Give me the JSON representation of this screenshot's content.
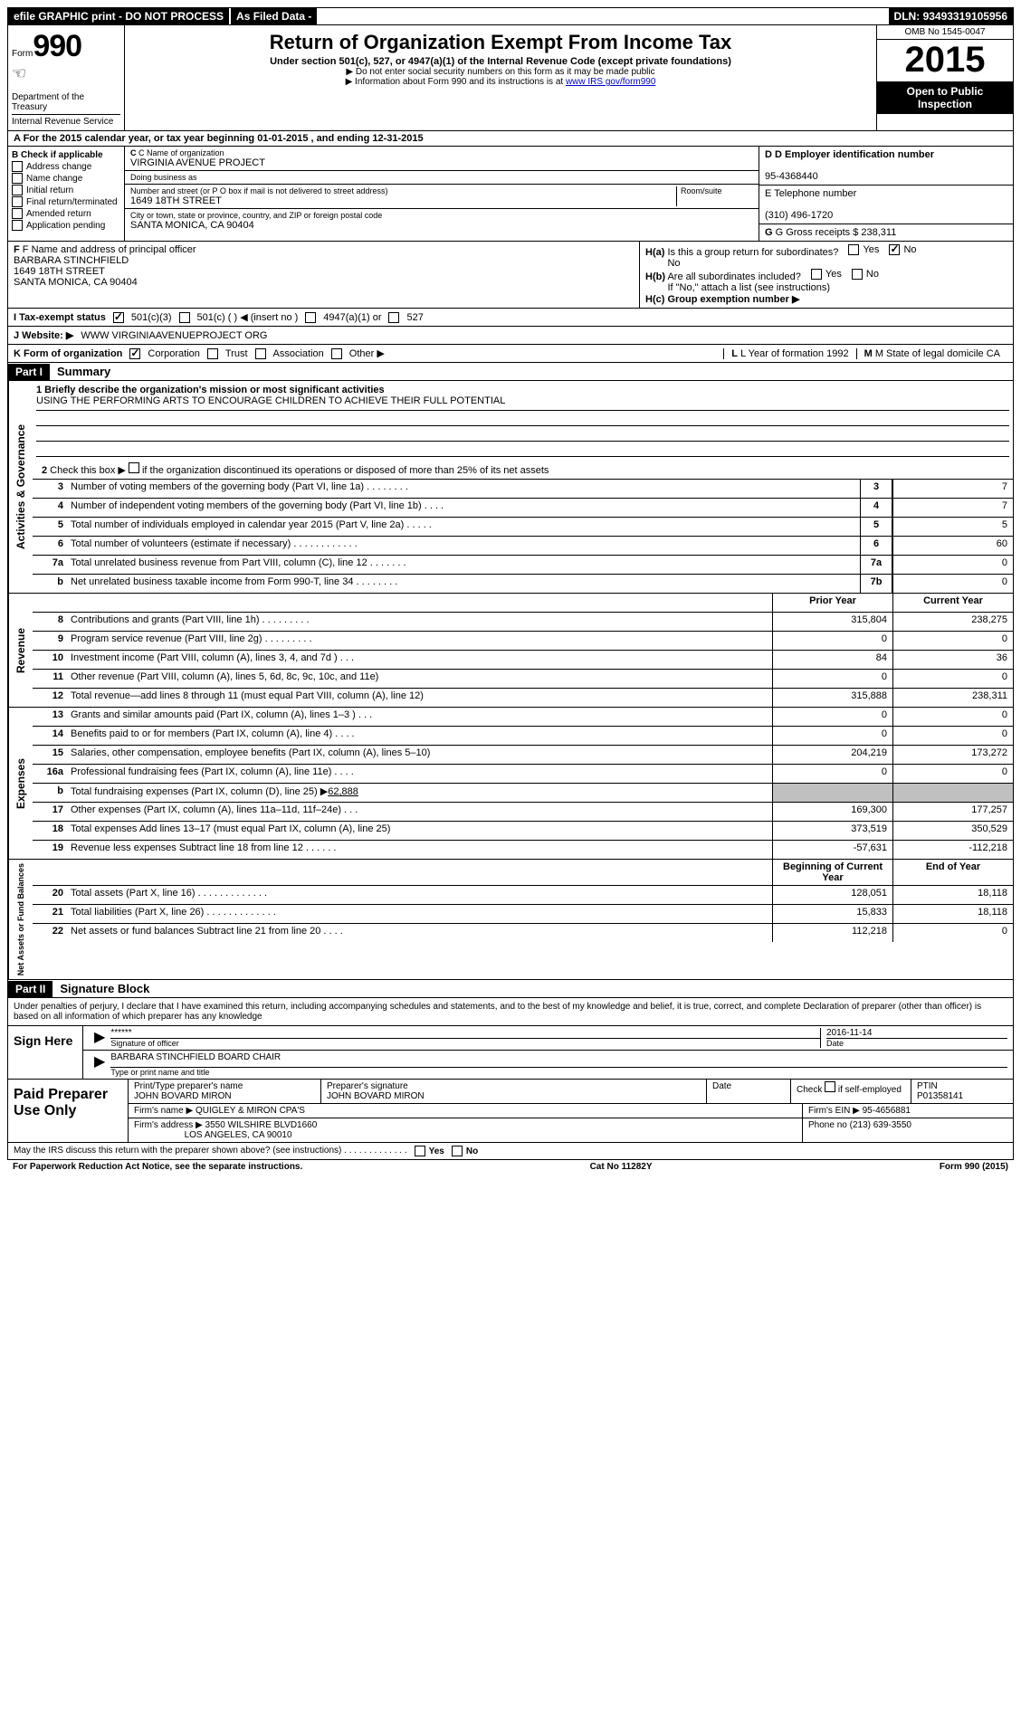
{
  "topbar": {
    "efile": "efile GRAPHIC print - DO NOT PROCESS",
    "asfiled": "As Filed Data -",
    "dln_label": "DLN:",
    "dln": "93493319105956"
  },
  "header": {
    "form_word": "Form",
    "form_num": "990",
    "dept": "Department of the Treasury",
    "irs": "Internal Revenue Service",
    "title": "Return of Organization Exempt From Income Tax",
    "subtitle": "Under section 501(c), 527, or 4947(a)(1) of the Internal Revenue Code (except private foundations)",
    "note1": "▶ Do not enter social security numbers on this form as it may be made public",
    "note2_pre": "▶ Information about Form 990 and its instructions is at ",
    "note2_link": "www IRS gov/form990",
    "omb": "OMB No 1545-0047",
    "year": "2015",
    "open": "Open to Public Inspection"
  },
  "rowA": "A  For the 2015 calendar year, or tax year beginning 01-01-2015    , and ending 12-31-2015",
  "checkB": {
    "label": "B  Check if applicable",
    "items": [
      "Address change",
      "Name change",
      "Initial return",
      "Final return/terminated",
      "Amended return",
      "Application pending"
    ]
  },
  "colC": {
    "name_label": "C Name of organization",
    "name": "VIRGINIA AVENUE PROJECT",
    "dba_label": "Doing business as",
    "dba": "",
    "street_label": "Number and street (or P O box if mail is not delivered to street address)",
    "room_label": "Room/suite",
    "street": "1649 18TH STREET",
    "city_label": "City or town, state or province, country, and ZIP or foreign postal code",
    "city": "SANTA MONICA, CA 90404"
  },
  "colD": {
    "d_label": "D Employer identification number",
    "d_val": "95-4368440",
    "e_label": "E Telephone number",
    "e_val": "(310) 496-1720",
    "g_label": "G Gross receipts $",
    "g_val": "238,311"
  },
  "rowF": {
    "f_label": "F  Name and address of principal officer",
    "f_name": "BARBARA STINCHFIELD",
    "f_street": "1649 18TH STREET",
    "f_city": "SANTA MONICA, CA 90404",
    "ha": "H(a)  Is this a group return for subordinates?",
    "ha_ans": "No",
    "hb": "H(b)  Are all subordinates included?",
    "hb_note": "If \"No,\" attach a list (see instructions)",
    "hc": "H(c)  Group exemption number ▶",
    "yes": "Yes",
    "no": "No"
  },
  "rowI": {
    "label": "I   Tax-exempt status",
    "opt1": "501(c)(3)",
    "opt2": "501(c) (   ) ◀ (insert no )",
    "opt3": "4947(a)(1) or",
    "opt4": "527"
  },
  "rowJ": {
    "label": "J   Website: ▶",
    "val": "WWW VIRGINIAAVENUEPROJECT ORG"
  },
  "rowK": {
    "label": "K Form of organization",
    "opts": [
      "Corporation",
      "Trust",
      "Association",
      "Other ▶"
    ],
    "l_label": "L Year of formation",
    "l_val": "1992",
    "m_label": "M State of legal domicile",
    "m_val": "CA"
  },
  "part1": {
    "header": "Part I",
    "title": "Summary",
    "q1": "1 Briefly describe the organization's mission or most significant activities",
    "mission": "USING THE PERFORMING ARTS TO ENCOURAGE CHILDREN TO ACHIEVE THEIR FULL POTENTIAL",
    "q2": "2   Check this box ▶        if the organization discontinued its operations or disposed of more than 25% of its net assets",
    "gov_tab": "Activities & Governance",
    "rev_tab": "Revenue",
    "exp_tab": "Expenses",
    "net_tab": "Net Assets or Fund Balances",
    "prior": "Prior Year",
    "current": "Current Year",
    "begin": "Beginning of Current Year",
    "end": "End of Year",
    "lines_gov": [
      {
        "n": "3",
        "d": "Number of voting members of the governing body (Part VI, line 1a)   .    .    .    .    .    .    .    .",
        "ln": "3",
        "v": "7"
      },
      {
        "n": "4",
        "d": "Number of independent voting members of the governing body (Part VI, line 1b)    .    .    .    .",
        "ln": "4",
        "v": "7"
      },
      {
        "n": "5",
        "d": "Total number of individuals employed in calendar year 2015 (Part V, line 2a)   .    .    .    .    .",
        "ln": "5",
        "v": "5"
      },
      {
        "n": "6",
        "d": "Total number of volunteers (estimate if necessary)    .    .    .    .    .    .    .    .    .    .    .    .",
        "ln": "6",
        "v": "60"
      },
      {
        "n": "7a",
        "d": "Total unrelated business revenue from Part VIII, column (C), line 12   .    .    .    .    .    .    .",
        "ln": "7a",
        "v": "0"
      },
      {
        "n": "b",
        "d": "Net unrelated business taxable income from Form 990-T, line 34    .    .    .    .    .    .    .    .",
        "ln": "7b",
        "v": "0"
      }
    ],
    "lines_rev": [
      {
        "n": "8",
        "d": "Contributions and grants (Part VIII, line 1h)    .    .    .    .    .    .    .    .    .",
        "p": "315,804",
        "c": "238,275"
      },
      {
        "n": "9",
        "d": "Program service revenue (Part VIII, line 2g)    .    .    .    .    .    .    .    .    .",
        "p": "0",
        "c": "0"
      },
      {
        "n": "10",
        "d": "Investment income (Part VIII, column (A), lines 3, 4, and 7d )    .    .    .",
        "p": "84",
        "c": "36"
      },
      {
        "n": "11",
        "d": "Other revenue (Part VIII, column (A), lines 5, 6d, 8c, 9c, 10c, and 11e)",
        "p": "0",
        "c": "0"
      },
      {
        "n": "12",
        "d": "Total revenue—add lines 8 through 11 (must equal Part VIII, column (A), line 12)",
        "p": "315,888",
        "c": "238,311"
      }
    ],
    "lines_exp": [
      {
        "n": "13",
        "d": "Grants and similar amounts paid (Part IX, column (A), lines 1–3 )   .    .    .",
        "p": "0",
        "c": "0"
      },
      {
        "n": "14",
        "d": "Benefits paid to or for members (Part IX, column (A), line 4)    .    .    .    .",
        "p": "0",
        "c": "0"
      },
      {
        "n": "15",
        "d": "Salaries, other compensation, employee benefits (Part IX, column (A), lines 5–10)",
        "p": "204,219",
        "c": "173,272"
      },
      {
        "n": "16a",
        "d": "Professional fundraising fees (Part IX, column (A), line 11e)   .    .    .    .",
        "p": "0",
        "c": "0"
      },
      {
        "n": "b",
        "d": "Total fundraising expenses (Part IX, column (D), line 25) ▶<u>62,888</u>",
        "p": "",
        "c": "",
        "grey": true
      },
      {
        "n": "17",
        "d": "Other expenses (Part IX, column (A), lines 11a–11d, 11f–24e)   .    .    .",
        "p": "169,300",
        "c": "177,257"
      },
      {
        "n": "18",
        "d": "Total expenses Add lines 13–17 (must equal Part IX, column (A), line 25)",
        "p": "373,519",
        "c": "350,529"
      },
      {
        "n": "19",
        "d": "Revenue less expenses Subtract line 18 from line 12    .    .    .    .    .    .",
        "p": "-57,631",
        "c": "-112,218"
      }
    ],
    "lines_net": [
      {
        "n": "20",
        "d": "Total assets (Part X, line 16)    .    .    .    .    .    .    .    .    .    .    .    .    .",
        "p": "128,051",
        "c": "18,118"
      },
      {
        "n": "21",
        "d": "Total liabilities (Part X, line 26)    .    .    .    .    .    .    .    .    .    .    .    .    .",
        "p": "15,833",
        "c": "18,118"
      },
      {
        "n": "22",
        "d": "Net assets or fund balances Subtract line 21 from line 20    .    .    .    .",
        "p": "112,218",
        "c": "0"
      }
    ]
  },
  "part2": {
    "header": "Part II",
    "title": "Signature Block",
    "perjury": "Under penalties of perjury, I declare that I have examined this return, including accompanying schedules and statements, and to the best of my knowledge and belief, it is true, correct, and complete Declaration of preparer (other than officer) is based on all information of which preparer has any knowledge",
    "sign_here": "Sign Here",
    "sig_stars": "******",
    "sig_of_officer": "Signature of officer",
    "sig_date": "2016-11-14",
    "date_label": "Date",
    "officer_name": "BARBARA STINCHFIELD BOARD CHAIR",
    "type_label": "Type or print name and title",
    "paid": "Paid Preparer Use Only",
    "prep_name_label": "Print/Type preparer's name",
    "prep_name": "JOHN BOVARD MIRON",
    "prep_sig_label": "Preparer's signature",
    "prep_sig": "JOHN BOVARD MIRON",
    "prep_date_label": "Date",
    "check_if": "Check         if self-employed",
    "ptin_label": "PTIN",
    "ptin": "P01358141",
    "firm_name_label": "Firm's name     ▶",
    "firm_name": "QUIGLEY & MIRON CPA'S",
    "firm_ein_label": "Firm's EIN ▶",
    "firm_ein": "95-4656881",
    "firm_addr_label": "Firm's address ▶",
    "firm_addr": "3550 WILSHIRE BLVD1660",
    "firm_city": "LOS ANGELES, CA 90010",
    "phone_label": "Phone no",
    "phone": "(213) 639-3550",
    "may_irs": "May the IRS discuss this return with the preparer shown above? (see instructions)    .    .    .    .    .    .    .    .    .    .    .    .    .",
    "yes": "Yes",
    "no": "No"
  },
  "footer": {
    "left": "For Paperwork Reduction Act Notice, see the separate instructions.",
    "mid": "Cat No 11282Y",
    "right": "Form 990 (2015)"
  }
}
